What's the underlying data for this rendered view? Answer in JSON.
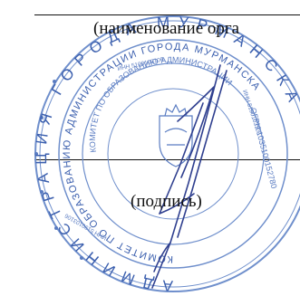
{
  "form": {
    "name_caption": "(наименование орга",
    "signature_caption": "(подпись)"
  },
  "seal": {
    "outer_ring_text": "АДМИНИСТРАЦИЯ ГОРОДА МУРМАНСКА",
    "middle_ring_text": "КОМИТЕТ ПО ОБРАЗОВАНИЮ АДМИНИСТРАЦИИ ГОРОДА МУРМАНСКА",
    "inner_ring_text": "КОМИТЕТ ПО ОБРАЗОВАНИЮ АДМИНИСТРАЦИИ",
    "inn_upper": "ИНН 5190103106",
    "inn_right": "ИНН 5190103106",
    "inn_lower": "ИНН 5190103106",
    "ogrn_text": "ОГРН 1035100152780",
    "emblem": "coat-of-arms-icon",
    "ink_color": "#3b5fae",
    "signature_ink_color": "#2f3f8f"
  }
}
